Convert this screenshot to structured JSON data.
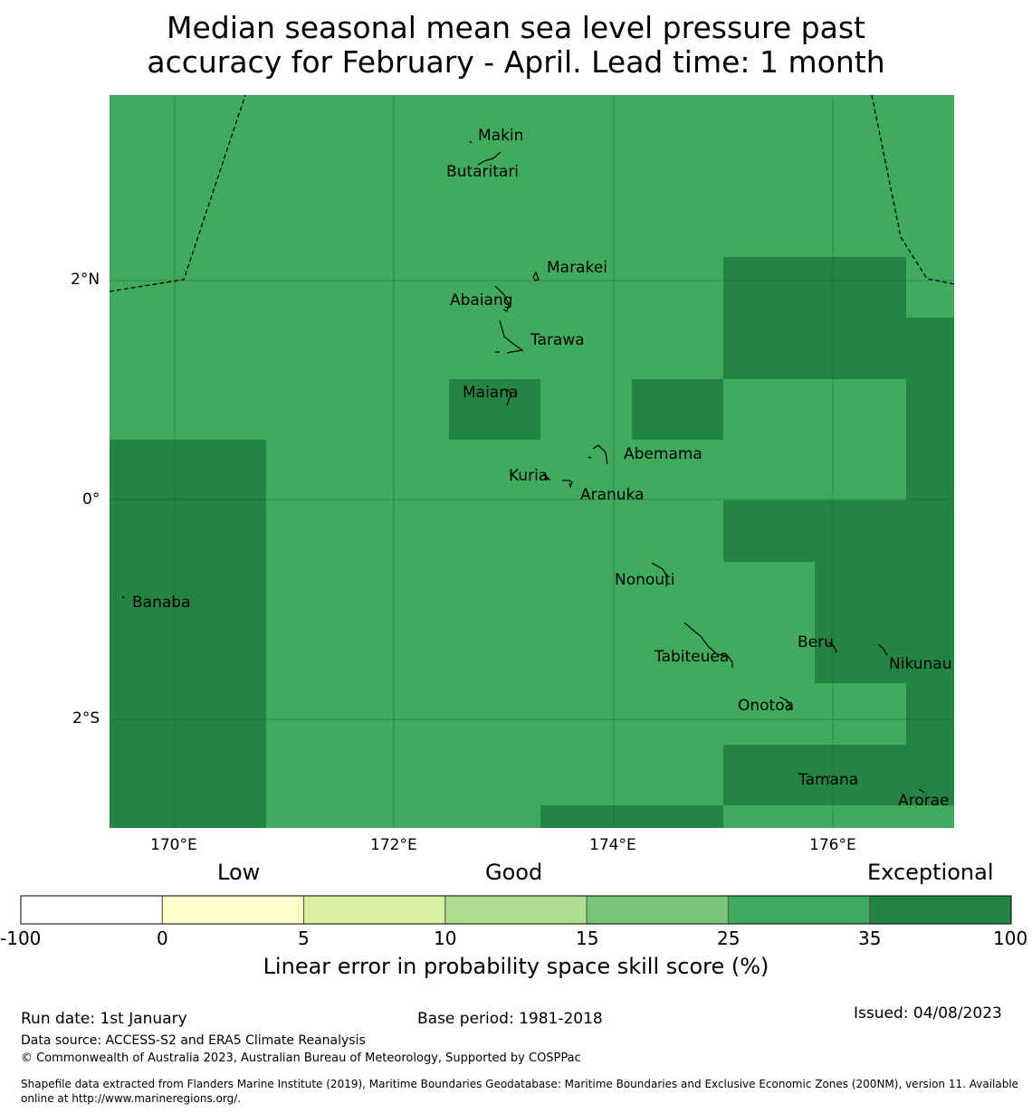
{
  "title_line1": "Median seasonal mean sea level pressure past",
  "title_line2": "accuracy for February - April. Lead time: 1 month",
  "map": {
    "lon_labels": [
      "170°E",
      "172°E",
      "174°E",
      "176°E"
    ],
    "lat_labels": [
      "2°N",
      "0°",
      "2°S"
    ],
    "islands": [
      "Makin",
      "Butaritari",
      "Marakei",
      "Abaiang",
      "Tarawa",
      "Maiana",
      "Abemama",
      "Kuria",
      "Aranuka",
      "Nonouti",
      "Banaba",
      "Tabiteuea",
      "Beru",
      "Nikunau",
      "Onotoa",
      "Tamana",
      "Arorae"
    ]
  },
  "colorbar": {
    "categories": [
      "Low",
      "Good",
      "Exceptional"
    ],
    "ticks": [
      "-100",
      "0",
      "5",
      "10",
      "15",
      "25",
      "35",
      "100"
    ],
    "colors": [
      "#ffffff",
      "#ffffcc",
      "#d9f0a3",
      "#addd8e",
      "#78c679",
      "#41ab5d",
      "#238443"
    ],
    "title": "Linear error in probability space skill score (%)"
  },
  "colors": {
    "good_green": "#41ab5d",
    "exceptional_green": "#238443"
  },
  "footer": {
    "run_date": "Run date: 1st January",
    "base_period": "Base period: 1981-2018",
    "issued": "Issued: 04/08/2023",
    "data_source": "Data source: ACCESS-S2 and ERA5 Climate Reanalysis",
    "copyright": "© Commonwealth of Australia 2023, Australian Bureau of Meteorology, Supported by COSPPac",
    "shapefile_line1": "Shapefile data extracted from Flanders Marine Institute (2019), Maritime Boundaries Geodatabase: Maritime Boundaries and Exclusive Economic Zones (200NM), version 11. Available",
    "shapefile_line2": "online at http://www.marineregions.org/."
  }
}
